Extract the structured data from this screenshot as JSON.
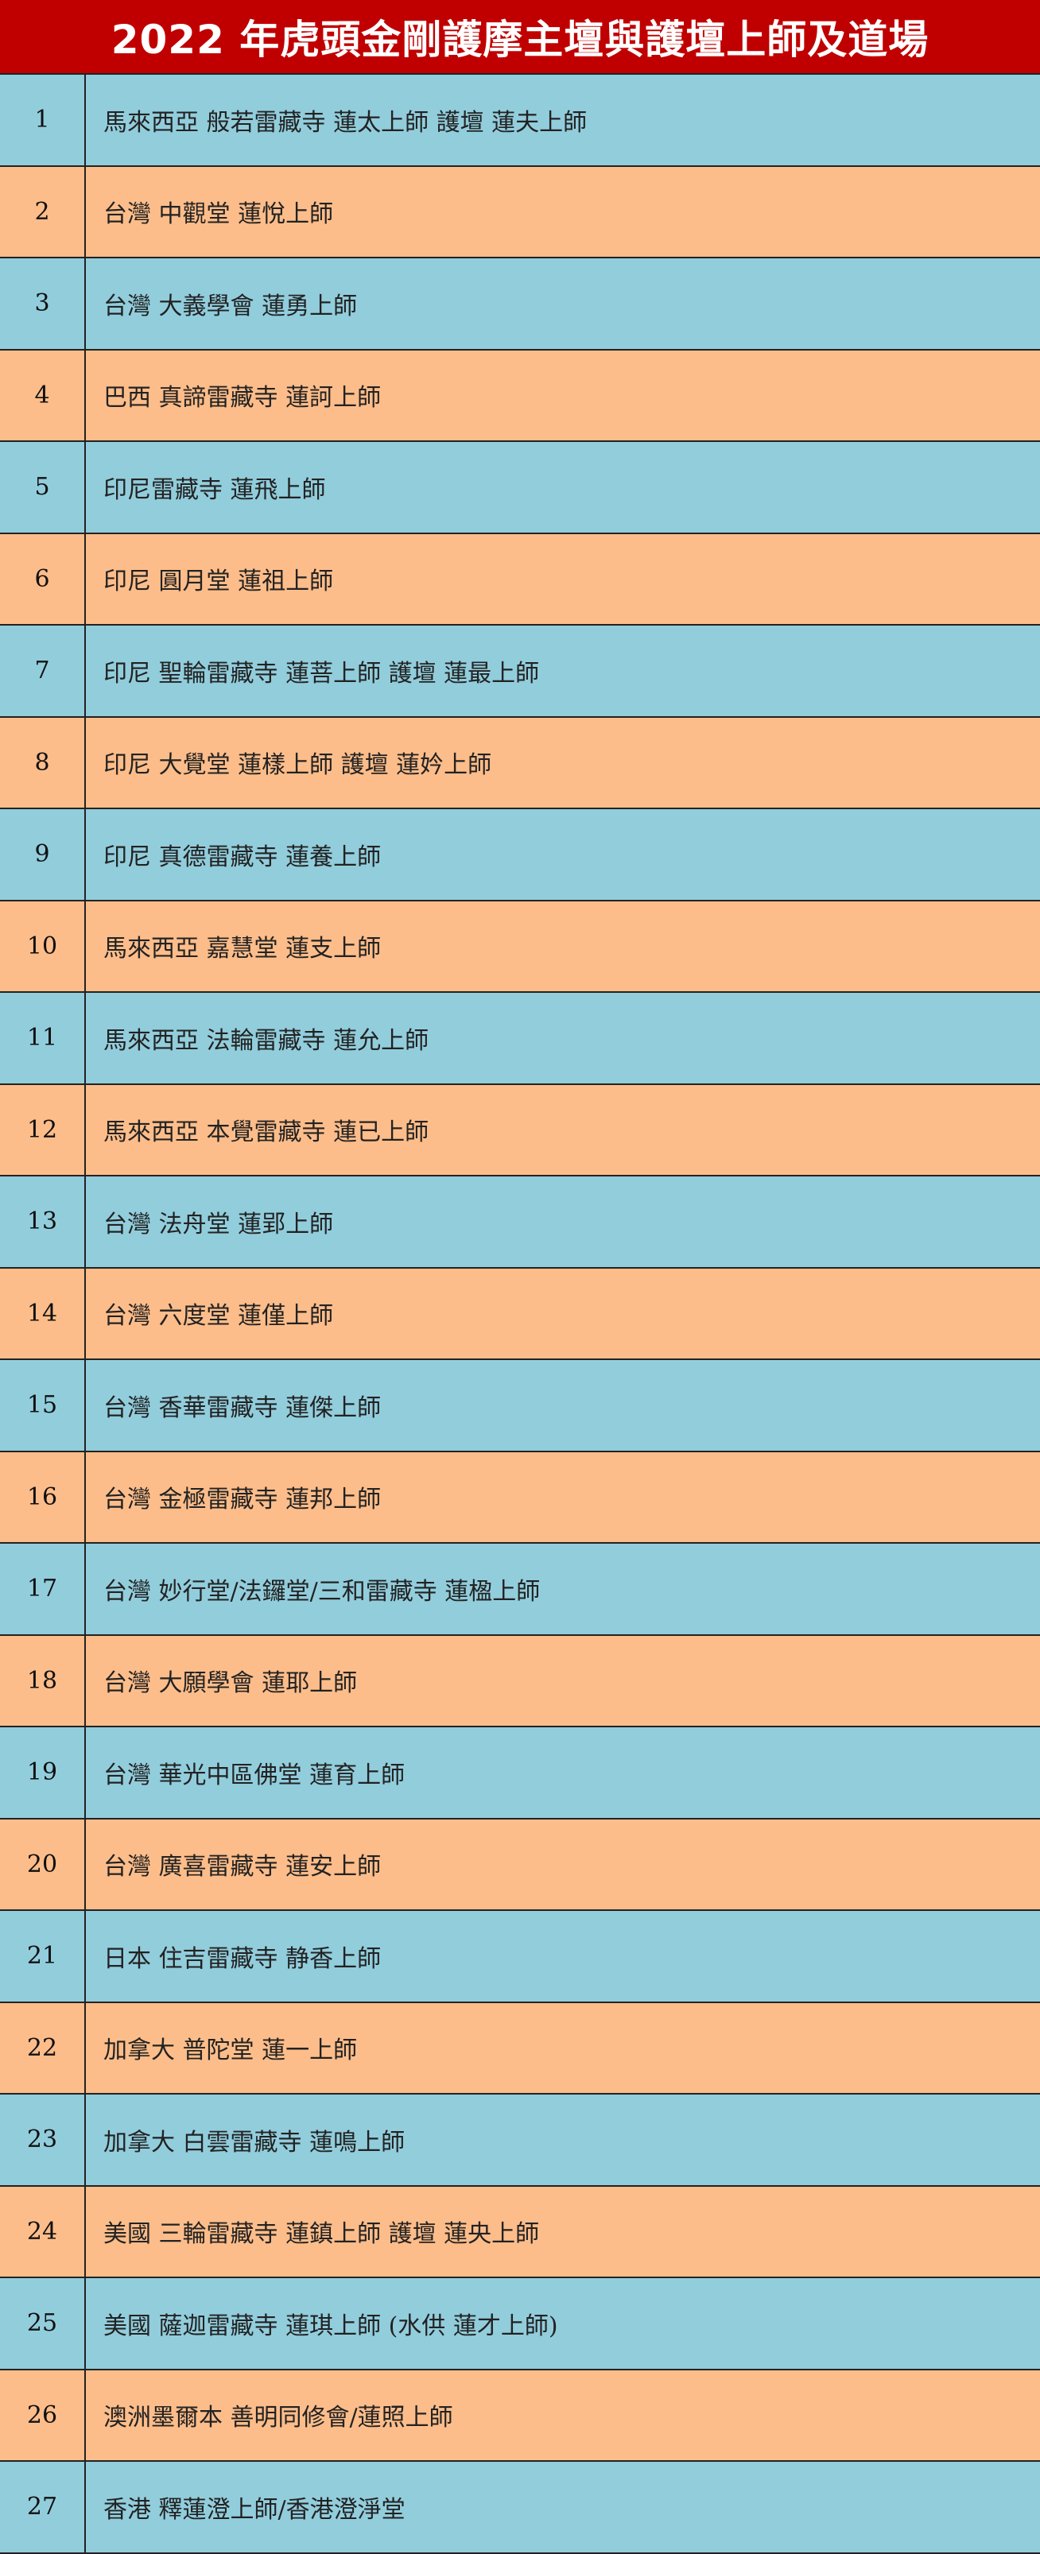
{
  "title": "2022 年虎頭金剛護摩主壇與護壇上師及道場",
  "colors": {
    "header": "#c00000",
    "row_blue": "#92cddc",
    "row_orange": "#fdbd8a"
  },
  "rows": [
    {
      "no": "1",
      "text": "馬來西亞 般若雷藏寺 蓮太上師 護壇 蓮夫上師"
    },
    {
      "no": "2",
      "text": "台灣 中觀堂 蓮悅上師"
    },
    {
      "no": "3",
      "text": "台灣 大義學會 蓮勇上師"
    },
    {
      "no": "4",
      "text": "巴西 真諦雷藏寺 蓮訶上師"
    },
    {
      "no": "5",
      "text": "印尼雷藏寺 蓮飛上師"
    },
    {
      "no": "6",
      "text": "印尼 圓月堂 蓮祖上師"
    },
    {
      "no": "7",
      "text": "印尼 聖輪雷藏寺 蓮菩上師 護壇 蓮最上師"
    },
    {
      "no": "8",
      "text": "印尼 大覺堂 蓮樣上師 護壇 蓮妗上師"
    },
    {
      "no": "9",
      "text": "印尼 真德雷藏寺 蓮養上師"
    },
    {
      "no": "10",
      "text": "馬來西亞 嘉慧堂 蓮支上師"
    },
    {
      "no": "11",
      "text": "馬來西亞 法輪雷藏寺 蓮允上師"
    },
    {
      "no": "12",
      "text": "馬來西亞 本覺雷藏寺 蓮已上師"
    },
    {
      "no": "13",
      "text": "台灣 法舟堂 蓮郢上師"
    },
    {
      "no": "14",
      "text": "台灣 六度堂 蓮僅上師"
    },
    {
      "no": "15",
      "text": "台灣 香華雷藏寺 蓮傑上師"
    },
    {
      "no": "16",
      "text": "台灣 金極雷藏寺 蓮邦上師"
    },
    {
      "no": "17",
      "text": "台灣 妙行堂/法鑼堂/三和雷藏寺 蓮楹上師"
    },
    {
      "no": "18",
      "text": "台灣 大願學會 蓮耶上師"
    },
    {
      "no": "19",
      "text": "台灣 華光中區佛堂 蓮育上師"
    },
    {
      "no": "20",
      "text": "台灣 廣喜雷藏寺 蓮安上師"
    },
    {
      "no": "21",
      "text": "日本 住吉雷藏寺 静香上師"
    },
    {
      "no": "22",
      "text": "加拿大 普陀堂 蓮一上師"
    },
    {
      "no": "23",
      "text": "加拿大 白雲雷藏寺 蓮鳴上師"
    },
    {
      "no": "24",
      "text": "美國 三輪雷藏寺 蓮鎮上師 護壇 蓮央上師"
    },
    {
      "no": "25",
      "text": "美國 薩迦雷藏寺 蓮琪上師 (水供 蓮才上師)"
    },
    {
      "no": "26",
      "text": "澳洲墨爾本 善明同修會/蓮照上師"
    },
    {
      "no": "27",
      "text": "香港 釋蓮澄上師/香港澄淨堂"
    }
  ]
}
